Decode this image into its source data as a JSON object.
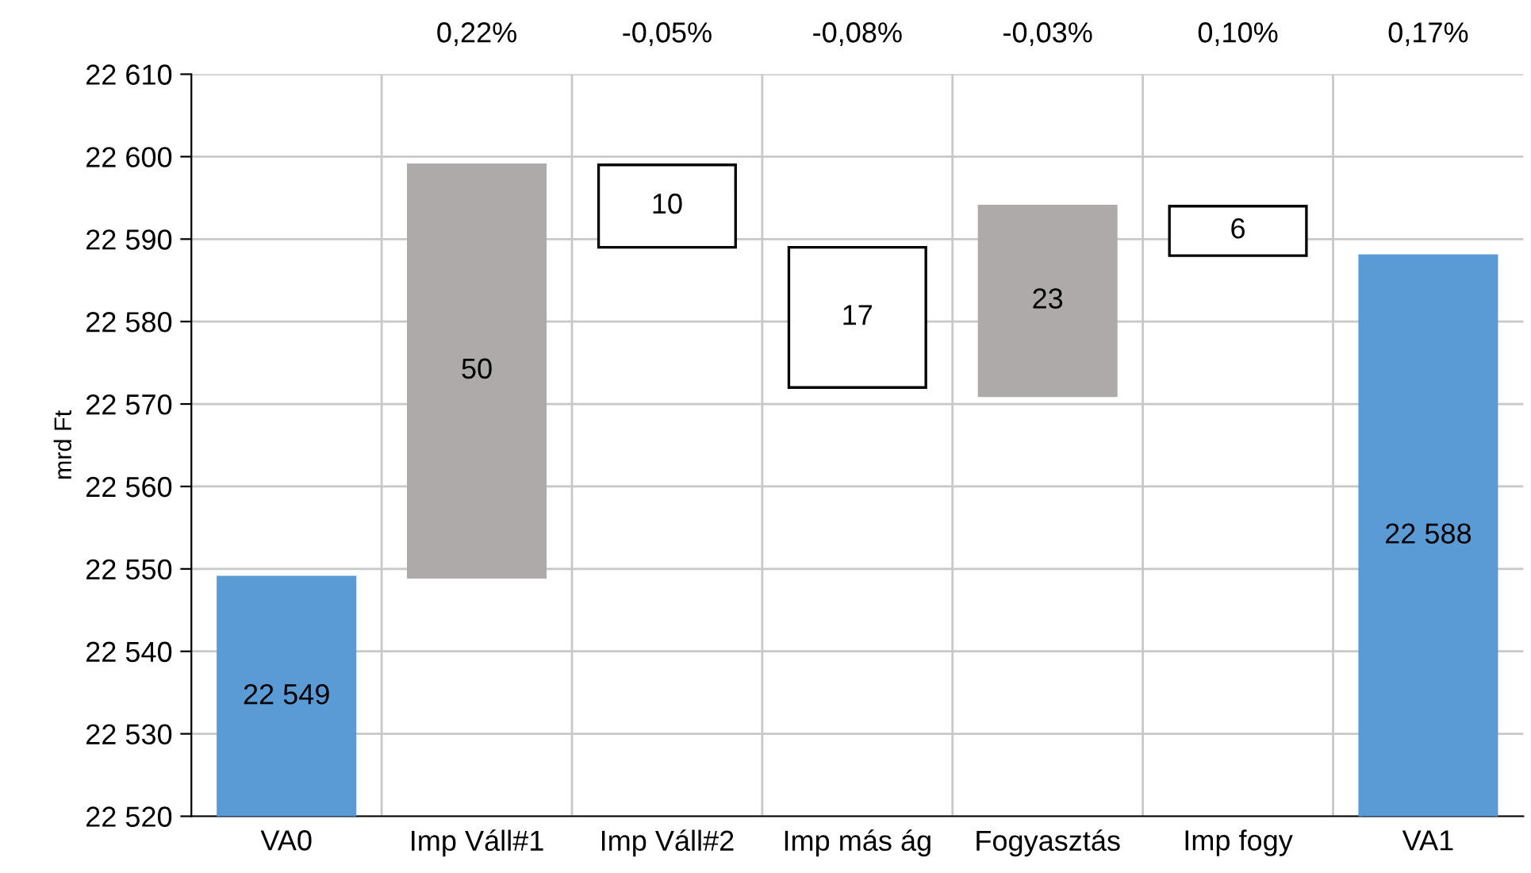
{
  "chart_data": {
    "type": "bar",
    "ylabel": "mrd Ft",
    "categories": [
      "VA0",
      "Imp Váll#1",
      "Imp Váll#2",
      "Imp más ág",
      "Fogyasztás",
      "Imp fogy",
      "VA1"
    ],
    "values": [
      22549,
      50,
      -10,
      -17,
      23,
      -6,
      22588
    ],
    "base": [
      null,
      22549,
      22599,
      22589,
      22571,
      22594,
      null
    ],
    "colors": [
      "#5b9bd5",
      "#aeaaaa",
      "#ffffff",
      "#ffffff",
      "#aeaaaa",
      "#ffffff",
      "#5b9bd5"
    ],
    "value_labels": [
      "22 549",
      "50",
      "10",
      "17",
      "23",
      "6",
      "22 588"
    ],
    "ylim": [
      22520,
      22610
    ],
    "yticks": [
      {
        "value": 22520,
        "label": "22 520"
      },
      {
        "value": 22530,
        "label": "22 530"
      },
      {
        "value": 22540,
        "label": "22 540"
      },
      {
        "value": 22550,
        "label": "22 550"
      },
      {
        "value": 22560,
        "label": "22 560"
      },
      {
        "value": 22570,
        "label": "22 570"
      },
      {
        "value": 22580,
        "label": "22 580"
      },
      {
        "value": 22590,
        "label": "22 590"
      },
      {
        "value": 22600,
        "label": "22 600"
      },
      {
        "value": 22610,
        "label": "22 610"
      }
    ],
    "annotations": [
      "0,22%",
      "-0,05%",
      "-0,08%",
      "-0,03%",
      "0,10%",
      "0,17%"
    ],
    "grid": true,
    "legend": false
  }
}
